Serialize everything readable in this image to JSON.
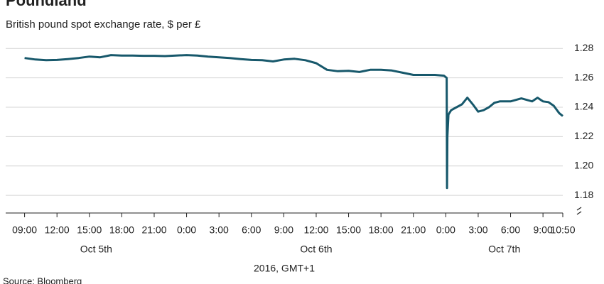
{
  "chart_data": {
    "type": "line",
    "title": "Poundland",
    "subtitle": "British pound spot exchange rate, $ per £",
    "x_label": "2016, GMT+1",
    "source": "Source: Bloomberg",
    "x": [
      "2016-10-05 09:00",
      "2016-10-05 10:00",
      "2016-10-05 11:00",
      "2016-10-05 12:00",
      "2016-10-05 13:00",
      "2016-10-05 14:00",
      "2016-10-05 15:00",
      "2016-10-05 16:00",
      "2016-10-05 17:00",
      "2016-10-05 18:00",
      "2016-10-05 19:00",
      "2016-10-05 20:00",
      "2016-10-05 21:00",
      "2016-10-05 22:00",
      "2016-10-05 23:00",
      "2016-10-06 00:00",
      "2016-10-06 01:00",
      "2016-10-06 02:00",
      "2016-10-06 03:00",
      "2016-10-06 04:00",
      "2016-10-06 05:00",
      "2016-10-06 06:00",
      "2016-10-06 07:00",
      "2016-10-06 08:00",
      "2016-10-06 09:00",
      "2016-10-06 10:00",
      "2016-10-06 11:00",
      "2016-10-06 12:00",
      "2016-10-06 13:00",
      "2016-10-06 14:00",
      "2016-10-06 15:00",
      "2016-10-06 16:00",
      "2016-10-06 17:00",
      "2016-10-06 18:00",
      "2016-10-06 19:00",
      "2016-10-06 20:00",
      "2016-10-06 21:00",
      "2016-10-06 22:00",
      "2016-10-06 23:00",
      "2016-10-06 23:50",
      "2016-10-07 00:05",
      "2016-10-07 00:07",
      "2016-10-07 00:09",
      "2016-10-07 00:15",
      "2016-10-07 00:30",
      "2016-10-07 01:00",
      "2016-10-07 01:30",
      "2016-10-07 02:00",
      "2016-10-07 02:30",
      "2016-10-07 03:00",
      "2016-10-07 03:30",
      "2016-10-07 04:00",
      "2016-10-07 04:30",
      "2016-10-07 05:00",
      "2016-10-07 06:00",
      "2016-10-07 07:00",
      "2016-10-07 07:30",
      "2016-10-07 08:00",
      "2016-10-07 08:30",
      "2016-10-07 09:00",
      "2016-10-07 09:30",
      "2016-10-07 10:00",
      "2016-10-07 10:30",
      "2016-10-07 10:50"
    ],
    "series": [
      {
        "color": "#17586b",
        "values": [
          1.2735,
          1.2725,
          1.272,
          1.2722,
          1.2728,
          1.2735,
          1.2745,
          1.274,
          1.2755,
          1.2752,
          1.2752,
          1.275,
          1.275,
          1.2748,
          1.2752,
          1.2755,
          1.2752,
          1.2745,
          1.274,
          1.2735,
          1.2728,
          1.2722,
          1.272,
          1.2712,
          1.2725,
          1.273,
          1.272,
          1.27,
          1.2655,
          1.2645,
          1.2648,
          1.264,
          1.2655,
          1.2655,
          1.265,
          1.2635,
          1.262,
          1.262,
          1.262,
          1.2615,
          1.26,
          1.185,
          1.22,
          1.235,
          1.238,
          1.24,
          1.242,
          1.2465,
          1.242,
          1.237,
          1.238,
          1.24,
          1.243,
          1.244,
          1.244,
          1.246,
          1.245,
          1.244,
          1.2465,
          1.244,
          1.2435,
          1.241,
          1.236,
          1.234
        ]
      }
    ],
    "xlim": [
      "2016-10-05 07:15",
      "2016-10-07 10:50"
    ],
    "xticks": [
      {
        "value": "2016-10-05 09:00",
        "label": "09:00"
      },
      {
        "value": "2016-10-05 12:00",
        "label": "12:00"
      },
      {
        "value": "2016-10-05 15:00",
        "label": "15:00"
      },
      {
        "value": "2016-10-05 18:00",
        "label": "18:00"
      },
      {
        "value": "2016-10-05 21:00",
        "label": "21:00"
      },
      {
        "value": "2016-10-06 00:00",
        "label": "0:00"
      },
      {
        "value": "2016-10-06 03:00",
        "label": "3:00"
      },
      {
        "value": "2016-10-06 06:00",
        "label": "6:00"
      },
      {
        "value": "2016-10-06 09:00",
        "label": "9:00"
      },
      {
        "value": "2016-10-06 12:00",
        "label": "12:00"
      },
      {
        "value": "2016-10-06 15:00",
        "label": "15:00"
      },
      {
        "value": "2016-10-06 18:00",
        "label": "18:00"
      },
      {
        "value": "2016-10-06 21:00",
        "label": "21:00"
      },
      {
        "value": "2016-10-07 00:00",
        "label": "0:00"
      },
      {
        "value": "2016-10-07 03:00",
        "label": "3:00"
      },
      {
        "value": "2016-10-07 06:00",
        "label": "6:00"
      },
      {
        "value": "2016-10-07 09:00",
        "label": "9:00"
      },
      {
        "value": "2016-10-07 10:50",
        "label": "10:50"
      }
    ],
    "day_labels": [
      {
        "value": "2016-10-05",
        "label": "Oct 5th"
      },
      {
        "value": "2016-10-06",
        "label": "Oct 6th"
      },
      {
        "value": "2016-10-07",
        "label": "Oct 7th"
      }
    ],
    "ylim": [
      1.168,
      1.284
    ],
    "yticks": [
      {
        "value": 1.18,
        "label": "1.18"
      },
      {
        "value": 1.2,
        "label": "1.20"
      },
      {
        "value": 1.22,
        "label": "1.22"
      },
      {
        "value": 1.24,
        "label": "1.24"
      },
      {
        "value": 1.26,
        "label": "1.26"
      },
      {
        "value": 1.28,
        "label": "1.28"
      }
    ],
    "grid": true
  }
}
